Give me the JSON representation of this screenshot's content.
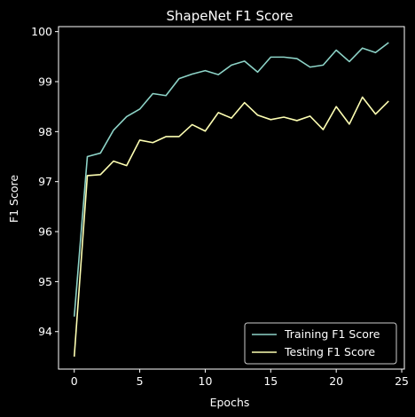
{
  "chart_data": {
    "type": "line",
    "title": "ShapeNet F1 Score",
    "xlabel": "Epochs",
    "ylabel": "F1 Score",
    "xlim": [
      -1.2,
      25.2
    ],
    "ylim": [
      93.25,
      100.1
    ],
    "xticks": [
      0,
      5,
      10,
      15,
      20,
      25
    ],
    "yticks": [
      94,
      95,
      96,
      97,
      98,
      99,
      100
    ],
    "grid": false,
    "legend_position": "lower-right",
    "background": "#000000",
    "foreground": "#ffffff",
    "x": [
      0,
      1,
      2,
      3,
      4,
      5,
      6,
      7,
      8,
      9,
      10,
      11,
      12,
      13,
      14,
      15,
      16,
      17,
      18,
      19,
      20,
      21,
      22,
      23,
      24
    ],
    "series": [
      {
        "name": "Training F1 Score",
        "color": "#8dd3c7",
        "values": [
          94.3,
          97.5,
          97.57,
          98.03,
          98.3,
          98.45,
          98.76,
          98.72,
          99.06,
          99.15,
          99.22,
          99.14,
          99.33,
          99.41,
          99.19,
          99.49,
          99.49,
          99.46,
          99.29,
          99.33,
          99.63,
          99.4,
          99.67,
          99.58,
          99.78
        ]
      },
      {
        "name": "Testing F1 Score",
        "color": "#feffb3",
        "values": [
          93.5,
          97.12,
          97.14,
          97.41,
          97.32,
          97.83,
          97.78,
          97.9,
          97.9,
          98.14,
          98.01,
          98.38,
          98.27,
          98.58,
          98.33,
          98.24,
          98.29,
          98.22,
          98.31,
          98.04,
          98.5,
          98.15,
          98.69,
          98.35,
          98.61
        ]
      }
    ]
  }
}
